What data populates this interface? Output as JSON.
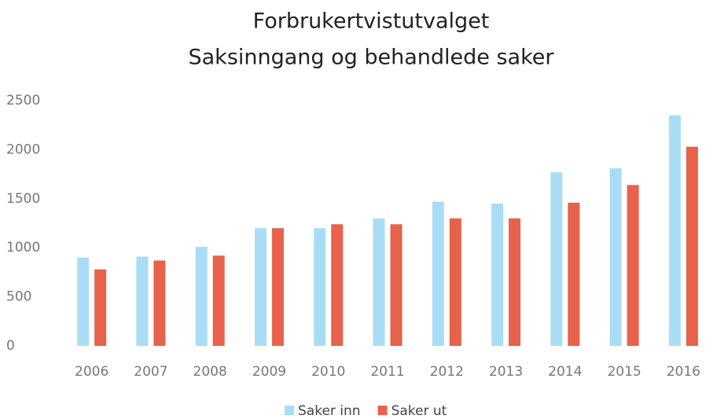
{
  "chart_data": {
    "type": "bar",
    "title": "Forbrukertvistutvalget",
    "subtitle": "Saksinngang og behandlede saker",
    "categories": [
      "2006",
      "2007",
      "2008",
      "2009",
      "2010",
      "2011",
      "2012",
      "2013",
      "2014",
      "2015",
      "2016"
    ],
    "series": [
      {
        "name": "Saker inn",
        "color": "#a9ddf5",
        "values": [
          900,
          910,
          1010,
          1200,
          1200,
          1300,
          1470,
          1450,
          1770,
          1810,
          2350
        ]
      },
      {
        "name": "Saker ut",
        "color": "#e8614b",
        "values": [
          780,
          870,
          920,
          1200,
          1240,
          1240,
          1300,
          1300,
          1460,
          1640,
          2030
        ]
      }
    ],
    "ylim": [
      0,
      2500
    ],
    "yticks": [
      0,
      500,
      1000,
      1500,
      2000,
      2500
    ],
    "grid": false,
    "legend": "bottom"
  }
}
